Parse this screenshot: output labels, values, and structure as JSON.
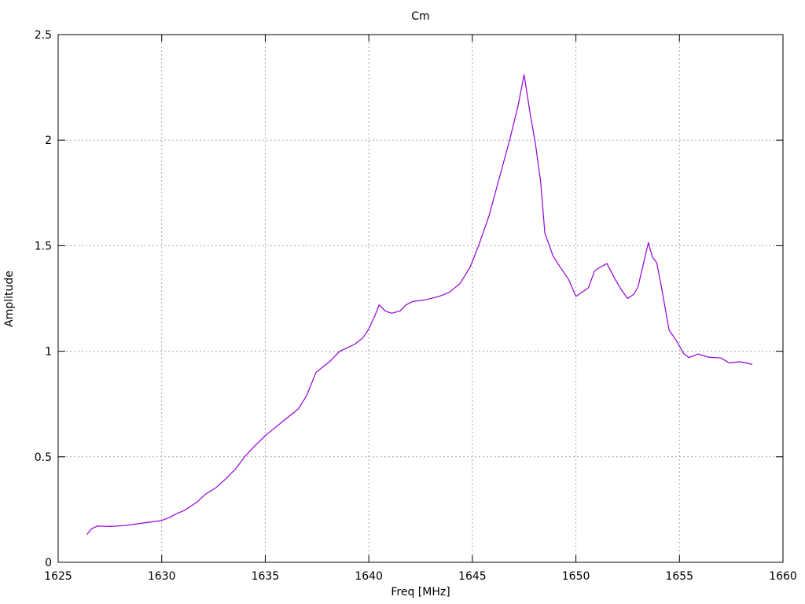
{
  "window": {
    "background": "#ffffff"
  },
  "chart_data": {
    "type": "line",
    "title": "Cm",
    "xlabel": "Freq [MHz]",
    "ylabel": "Amplitude",
    "xlim": [
      1625,
      1660
    ],
    "ylim": [
      0,
      2.5
    ],
    "xticks": [
      1625,
      1630,
      1635,
      1640,
      1645,
      1650,
      1655,
      1660
    ],
    "xtick_labels": [
      "1625",
      "1630",
      "1635",
      "1640",
      "1645",
      "1650",
      "1655",
      "1660"
    ],
    "yticks": [
      0,
      0.5,
      1,
      1.5,
      2,
      2.5
    ],
    "ytick_labels": [
      "0",
      "0.5",
      "1",
      "1.5",
      "2",
      "2.5"
    ],
    "grid": true,
    "legend": "none",
    "colors": {
      "line": "#9400d3",
      "grid": "#a8a8a8",
      "axis": "#000000",
      "text": "#000000",
      "background": "#ffffff"
    },
    "series": [
      {
        "name": "Cm",
        "color": "#9400d3",
        "points": [
          [
            1626.4,
            0.133
          ],
          [
            1626.6,
            0.158
          ],
          [
            1626.9,
            0.172
          ],
          [
            1627.5,
            0.17
          ],
          [
            1628.2,
            0.174
          ],
          [
            1628.8,
            0.182
          ],
          [
            1629.4,
            0.19
          ],
          [
            1630.0,
            0.198
          ],
          [
            1630.4,
            0.213
          ],
          [
            1630.7,
            0.23
          ],
          [
            1631.1,
            0.246
          ],
          [
            1631.7,
            0.285
          ],
          [
            1632.1,
            0.322
          ],
          [
            1632.6,
            0.352
          ],
          [
            1633.1,
            0.396
          ],
          [
            1633.6,
            0.446
          ],
          [
            1634.0,
            0.5
          ],
          [
            1634.5,
            0.552
          ],
          [
            1635.0,
            0.6
          ],
          [
            1635.5,
            0.64
          ],
          [
            1636.0,
            0.68
          ],
          [
            1636.6,
            0.727
          ],
          [
            1637.0,
            0.79
          ],
          [
            1637.45,
            0.9
          ],
          [
            1638.1,
            0.95
          ],
          [
            1638.6,
            1.0
          ],
          [
            1639.3,
            1.032
          ],
          [
            1639.7,
            1.062
          ],
          [
            1640.0,
            1.105
          ],
          [
            1640.3,
            1.17
          ],
          [
            1640.5,
            1.22
          ],
          [
            1640.8,
            1.19
          ],
          [
            1641.1,
            1.18
          ],
          [
            1641.5,
            1.19
          ],
          [
            1641.8,
            1.22
          ],
          [
            1642.1,
            1.235
          ],
          [
            1642.8,
            1.245
          ],
          [
            1643.4,
            1.26
          ],
          [
            1643.9,
            1.28
          ],
          [
            1644.4,
            1.32
          ],
          [
            1644.9,
            1.4
          ],
          [
            1645.3,
            1.5
          ],
          [
            1645.8,
            1.64
          ],
          [
            1646.3,
            1.82
          ],
          [
            1646.8,
            2.0
          ],
          [
            1647.2,
            2.16
          ],
          [
            1647.5,
            2.31
          ],
          [
            1647.8,
            2.12
          ],
          [
            1648.05,
            1.98
          ],
          [
            1648.3,
            1.8
          ],
          [
            1648.5,
            1.56
          ],
          [
            1648.9,
            1.45
          ],
          [
            1649.3,
            1.39
          ],
          [
            1649.65,
            1.34
          ],
          [
            1650.0,
            1.26
          ],
          [
            1650.3,
            1.28
          ],
          [
            1650.6,
            1.3
          ],
          [
            1650.9,
            1.38
          ],
          [
            1651.2,
            1.4
          ],
          [
            1651.5,
            1.415
          ],
          [
            1651.9,
            1.34
          ],
          [
            1652.2,
            1.29
          ],
          [
            1652.5,
            1.25
          ],
          [
            1652.8,
            1.27
          ],
          [
            1653.0,
            1.305
          ],
          [
            1653.25,
            1.41
          ],
          [
            1653.5,
            1.515
          ],
          [
            1653.7,
            1.445
          ],
          [
            1653.9,
            1.42
          ],
          [
            1654.1,
            1.32
          ],
          [
            1654.3,
            1.21
          ],
          [
            1654.5,
            1.1
          ],
          [
            1654.85,
            1.05
          ],
          [
            1655.2,
            0.99
          ],
          [
            1655.45,
            0.97
          ],
          [
            1655.9,
            0.987
          ],
          [
            1656.4,
            0.972
          ],
          [
            1657.0,
            0.968
          ],
          [
            1657.4,
            0.945
          ],
          [
            1657.9,
            0.95
          ],
          [
            1658.2,
            0.945
          ],
          [
            1658.5,
            0.938
          ]
        ]
      }
    ]
  }
}
